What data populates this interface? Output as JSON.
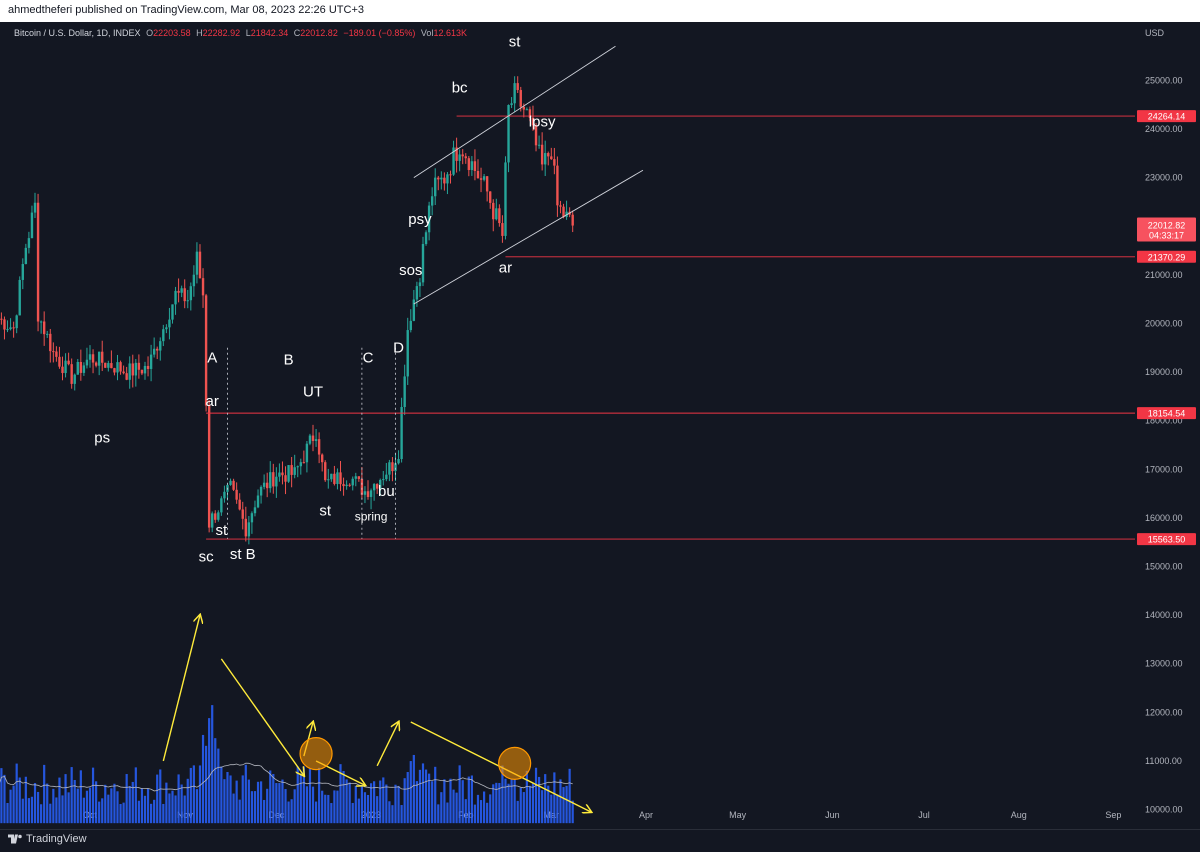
{
  "header": {
    "published": "ahmedtheferi published on TradingView.com, Mar 08, 2023 22:26 UTC+3"
  },
  "legend": {
    "symbol": "Bitcoin / U.S. Dollar, 1D, INDEX",
    "o_label": "O",
    "o": "22203.58",
    "h_label": "H",
    "h": "22282.92",
    "l_label": "L",
    "l": "21842.34",
    "c_label": "C",
    "c": "22012.82",
    "change": "−189.01 (−0.85%)",
    "vol_label": "Vol",
    "vol": "12.613K"
  },
  "footer": {
    "brand": "TradingView"
  },
  "colors": {
    "background": "#131722",
    "up": "#26a69a",
    "down": "#ef5350",
    "volume": "#2962ff",
    "level_line": "#f23645",
    "arrow": "#ffeb3b",
    "circle": "#ff9800"
  },
  "chart_data": {
    "type": "candlestick",
    "currency": "USD",
    "ylim": [
      9600,
      26200
    ],
    "y_ticks": [
      "25000.00",
      "24000.00",
      "23000.00",
      "22000.00",
      "21000.00",
      "20000.00",
      "19000.00",
      "18000.00",
      "17000.00",
      "16000.00",
      "15000.00",
      "14000.00",
      "13000.00",
      "12000.00",
      "11000.00",
      "10000.00"
    ],
    "x_ticks": [
      "Oct",
      "Nov",
      "Dec",
      "2023",
      "Feb",
      "Mar",
      "Apr",
      "May",
      "Jun",
      "Jul",
      "Aug",
      "Sep"
    ],
    "price_path": [
      [
        "2022-09-01",
        20100
      ],
      [
        "2022-09-06",
        19900
      ],
      [
        "2022-09-10",
        21600
      ],
      [
        "2022-09-13",
        22400
      ],
      [
        "2022-09-14",
        20200
      ],
      [
        "2022-09-19",
        19400
      ],
      [
        "2022-09-25",
        18900
      ],
      [
        "2022-10-01",
        19300
      ],
      [
        "2022-10-10",
        19100
      ],
      [
        "2022-10-13",
        19000
      ],
      [
        "2022-10-20",
        19100
      ],
      [
        "2022-10-25",
        19900
      ],
      [
        "2022-10-29",
        20600
      ],
      [
        "2022-11-02",
        20500
      ],
      [
        "2022-11-05",
        21300
      ],
      [
        "2022-11-07",
        20600
      ],
      [
        "2022-11-08",
        18400
      ],
      [
        "2022-11-09",
        15900
      ],
      [
        "2022-11-13",
        16300
      ],
      [
        "2022-11-16",
        16600
      ],
      [
        "2022-11-21",
        15800
      ],
      [
        "2022-11-25",
        16500
      ],
      [
        "2022-12-01",
        16900
      ],
      [
        "2022-12-07",
        16900
      ],
      [
        "2022-12-14",
        17800
      ],
      [
        "2022-12-17",
        16700
      ],
      [
        "2022-12-20",
        16800
      ],
      [
        "2022-12-25",
        16850
      ],
      [
        "2022-12-30",
        16550
      ],
      [
        "2023-01-02",
        16700
      ],
      [
        "2023-01-08",
        17100
      ],
      [
        "2023-01-10",
        17400
      ],
      [
        "2023-01-13",
        19900
      ],
      [
        "2023-01-17",
        21100
      ],
      [
        "2023-01-21",
        22700
      ],
      [
        "2023-01-25",
        23000
      ],
      [
        "2023-01-30",
        23700
      ],
      [
        "2023-02-02",
        23400
      ],
      [
        "2023-02-08",
        22700
      ],
      [
        "2023-02-13",
        21800
      ],
      [
        "2023-02-15",
        24400
      ],
      [
        "2023-02-17",
        24700
      ],
      [
        "2023-02-21",
        24300
      ],
      [
        "2023-02-26",
        23200
      ],
      [
        "2023-03-01",
        23600
      ],
      [
        "2023-03-03",
        22400
      ],
      [
        "2023-03-08",
        22012
      ]
    ],
    "levels": [
      {
        "label": "24264.14",
        "value": 24264.14
      },
      {
        "label": "22012.82",
        "value": 22012.82,
        "sublabel": "04:33:17",
        "current": true
      },
      {
        "label": "21370.29",
        "value": 21370.29
      },
      {
        "label": "18154.54",
        "value": 18154.54
      },
      {
        "label": "15563.50",
        "value": 15563.5
      }
    ],
    "annotations": [
      {
        "text": "st",
        "x": "2023-02-17",
        "y": 25700
      },
      {
        "text": "bc",
        "x": "2023-01-30",
        "y": 24750
      },
      {
        "text": "lpsy",
        "x": "2023-02-26",
        "y": 24050
      },
      {
        "text": "psy",
        "x": "2023-01-17",
        "y": 22050
      },
      {
        "text": "sos",
        "x": "2023-01-14",
        "y": 21000
      },
      {
        "text": "ar",
        "x": "2023-02-14",
        "y": 21050
      },
      {
        "text": "A",
        "x": "2022-11-10",
        "y": 19200
      },
      {
        "text": "B",
        "x": "2022-12-05",
        "y": 19150
      },
      {
        "text": "C",
        "x": "2022-12-31",
        "y": 19200
      },
      {
        "text": "D",
        "x": "2023-01-10",
        "y": 19400
      },
      {
        "text": "UT",
        "x": "2022-12-13",
        "y": 18500
      },
      {
        "text": "ar",
        "x": "2022-11-10",
        "y": 18300
      },
      {
        "text": "ps",
        "x": "2022-10-05",
        "y": 17550
      },
      {
        "text": "bu",
        "x": "2023-01-06",
        "y": 16450
      },
      {
        "text": "st",
        "x": "2022-12-17",
        "y": 16050
      },
      {
        "text": "spring",
        "x": "2023-01-01",
        "y": 15950
      },
      {
        "text": "st",
        "x": "2022-11-13",
        "y": 15650
      },
      {
        "text": "sc",
        "x": "2022-11-08",
        "y": 15100
      },
      {
        "text": "st B",
        "x": "2022-11-20",
        "y": 15150
      }
    ],
    "phase_dividers": [
      "2022-11-15",
      "2022-12-29",
      "2023-01-09"
    ],
    "channel": [
      {
        "from": [
          "2023-01-15",
          23000
        ],
        "to": [
          "2023-03-22",
          25700
        ]
      },
      {
        "from": [
          "2023-01-15",
          20400
        ],
        "to": [
          "2023-03-31",
          23150
        ]
      }
    ],
    "volume_arrows": [
      {
        "from": [
          "2022-10-25",
          11000
        ],
        "to": [
          "2022-11-06",
          14000
        ]
      },
      {
        "from": [
          "2022-11-13",
          13100
        ],
        "to": [
          "2022-12-10",
          10700
        ]
      },
      {
        "from": [
          "2022-12-10",
          11100
        ],
        "to": [
          "2022-12-13",
          11800
        ]
      },
      {
        "from": [
          "2022-12-14",
          11000
        ],
        "to": [
          "2022-12-30",
          10500
        ]
      },
      {
        "from": [
          "2023-01-03",
          10900
        ],
        "to": [
          "2023-01-10",
          11800
        ]
      },
      {
        "from": [
          "2023-01-14",
          11800
        ],
        "to": [
          "2023-03-14",
          9950
        ]
      }
    ],
    "volume_circles": [
      {
        "x": "2022-12-14",
        "y": 11150
      },
      {
        "x": "2023-02-17",
        "y": 10950
      }
    ]
  }
}
